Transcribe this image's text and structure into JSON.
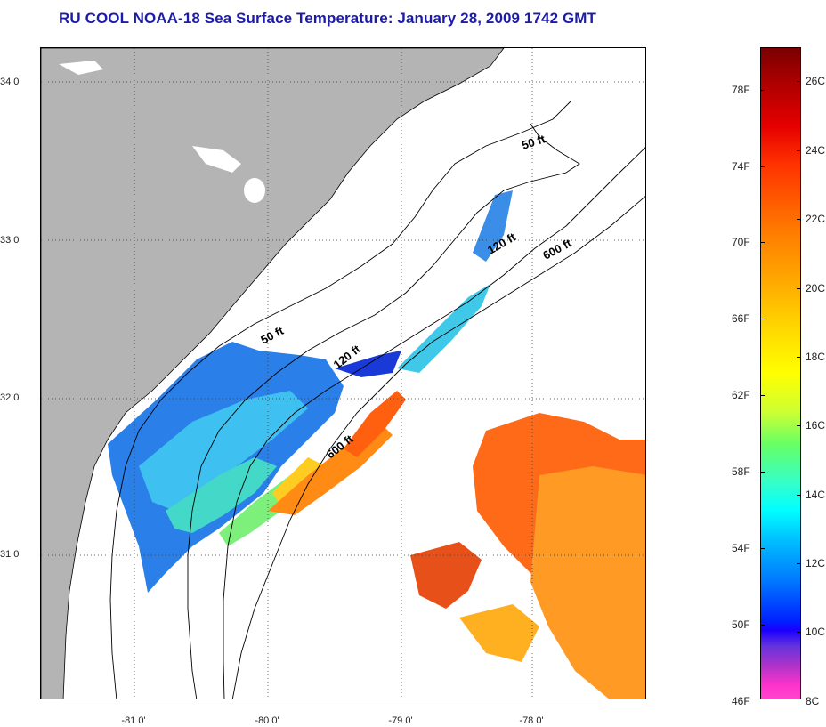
{
  "title": "RU COOL  NOAA-18  Sea Surface Temperature:  January 28, 2009 1742 GMT",
  "map": {
    "latitude_labels": [
      "34 0'",
      "33 0'",
      "32 0'",
      "31 0'"
    ],
    "longitude_labels": [
      "-81 0'",
      "-80 0'",
      "-79 0'",
      "-78 0'"
    ],
    "contour_labels": [
      "50 ft",
      "120 ft",
      "600 ft",
      "50 ft",
      "120 ft",
      "600 ft"
    ],
    "colors": {
      "land": "#b4b4b4",
      "ocean_nodata": "#ffffff",
      "coastline": "#000000"
    }
  },
  "colorbar": {
    "fahrenheit_labels": [
      "78F",
      "74F",
      "70F",
      "66F",
      "62F",
      "58F",
      "54F",
      "50F",
      "46F"
    ],
    "celsius_labels": [
      "26C",
      "24C",
      "22C",
      "20C",
      "18C",
      "16C",
      "14C",
      "12C",
      "10C",
      "8C"
    ]
  }
}
